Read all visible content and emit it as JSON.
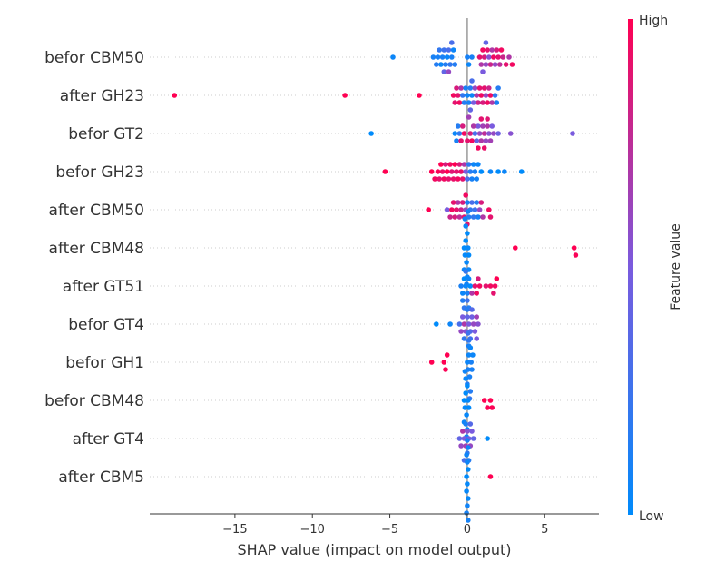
{
  "chart_data": {
    "type": "scatter",
    "subtype": "shap-beeswarm",
    "title": "",
    "xlabel": "SHAP value (impact on model output)",
    "ylabel": "",
    "xlim": [
      -20.5,
      8.5
    ],
    "xticks": [
      -15,
      -10,
      -5,
      0,
      5
    ],
    "xtick_labels": [
      "−15",
      "−10",
      "−5",
      "0",
      "5"
    ],
    "grid": "horizontal dotted row guides",
    "colorbar": {
      "label": "Feature value",
      "high_label": "High",
      "low_label": "Low",
      "low_color": "#008bfb",
      "high_color": "#ff0052"
    },
    "features": [
      {
        "name": "befor CBM50",
        "points": [
          [
            -4.8,
            0.05
          ],
          [
            -2.2,
            0.1
          ],
          [
            -2.0,
            0.15
          ],
          [
            -1.9,
            0.1
          ],
          [
            -1.8,
            0.2
          ],
          [
            -1.7,
            0.05
          ],
          [
            -1.6,
            0.1
          ],
          [
            -1.5,
            0.25
          ],
          [
            -1.4,
            0.15
          ],
          [
            -1.3,
            0.05
          ],
          [
            -1.2,
            0.3
          ],
          [
            -1.1,
            0.2
          ],
          [
            -1.0,
            0.1
          ],
          [
            -0.9,
            0.05
          ],
          [
            -0.8,
            0.15
          ],
          [
            -1.5,
            0.4
          ],
          [
            -1.2,
            0.6
          ],
          [
            -1.0,
            0.3
          ],
          [
            0.0,
            0.1
          ],
          [
            0.1,
            0.05
          ],
          [
            0.3,
            0.1
          ],
          [
            0.8,
            0.9
          ],
          [
            0.9,
            0.7
          ],
          [
            1.0,
            0.95
          ],
          [
            1.0,
            0.5
          ],
          [
            1.1,
            0.85
          ],
          [
            1.2,
            0.6
          ],
          [
            1.3,
            0.9
          ],
          [
            1.4,
            0.55
          ],
          [
            1.5,
            0.8
          ],
          [
            1.6,
            0.7
          ],
          [
            1.7,
            0.95
          ],
          [
            1.8,
            0.6
          ],
          [
            1.9,
            0.85
          ],
          [
            2.0,
            0.9
          ],
          [
            2.1,
            0.75
          ],
          [
            2.2,
            0.95
          ],
          [
            2.3,
            0.8
          ],
          [
            2.5,
            0.9
          ],
          [
            2.7,
            0.7
          ],
          [
            2.9,
            0.95
          ],
          [
            1.2,
            0.4
          ]
        ]
      },
      {
        "name": "after GH23",
        "points": [
          [
            -18.9,
            1.0
          ],
          [
            -7.9,
            1.0
          ],
          [
            -3.1,
            1.0
          ],
          [
            -0.9,
            0.95
          ],
          [
            -0.8,
            0.9
          ],
          [
            -0.7,
            0.85
          ],
          [
            -0.6,
            0.9
          ],
          [
            -0.5,
            0.95
          ],
          [
            -0.4,
            0.7
          ],
          [
            -0.3,
            0.2
          ],
          [
            -0.2,
            0.15
          ],
          [
            -0.1,
            0.1
          ],
          [
            0.0,
            0.05
          ],
          [
            0.1,
            0.1
          ],
          [
            0.2,
            0.15
          ],
          [
            0.3,
            0.05
          ],
          [
            0.4,
            0.5
          ],
          [
            0.5,
            0.6
          ],
          [
            0.6,
            0.7
          ],
          [
            0.7,
            0.8
          ],
          [
            0.8,
            0.9
          ],
          [
            0.9,
            0.95
          ],
          [
            1.0,
            0.85
          ],
          [
            1.1,
            0.9
          ],
          [
            1.2,
            0.6
          ],
          [
            1.3,
            0.95
          ],
          [
            1.4,
            0.8
          ],
          [
            1.5,
            0.95
          ],
          [
            1.6,
            0.7
          ],
          [
            1.8,
            0.2
          ],
          [
            1.9,
            0.1
          ],
          [
            2.0,
            0.15
          ],
          [
            0.2,
            0.4
          ],
          [
            0.3,
            0.3
          ],
          [
            0.1,
            0.65
          ]
        ]
      },
      {
        "name": "befor GT2",
        "points": [
          [
            -6.2,
            0.0
          ],
          [
            -0.8,
            0.05
          ],
          [
            -0.7,
            0.1
          ],
          [
            -0.6,
            0.15
          ],
          [
            -0.5,
            0.2
          ],
          [
            -0.4,
            0.9
          ],
          [
            -0.3,
            0.85
          ],
          [
            -0.2,
            0.95
          ],
          [
            0.0,
            0.9
          ],
          [
            0.2,
            0.85
          ],
          [
            0.3,
            0.95
          ],
          [
            0.4,
            0.7
          ],
          [
            0.5,
            0.3
          ],
          [
            0.6,
            0.4
          ],
          [
            0.7,
            0.5
          ],
          [
            0.8,
            0.6
          ],
          [
            0.9,
            0.7
          ],
          [
            1.0,
            0.65
          ],
          [
            1.1,
            0.75
          ],
          [
            1.2,
            0.6
          ],
          [
            1.3,
            0.7
          ],
          [
            1.4,
            0.55
          ],
          [
            1.5,
            0.65
          ],
          [
            1.6,
            0.5
          ],
          [
            1.7,
            0.6
          ],
          [
            2.0,
            0.45
          ],
          [
            2.8,
            0.55
          ],
          [
            6.8,
            0.5
          ],
          [
            0.7,
            0.95
          ],
          [
            0.9,
            0.9
          ],
          [
            1.1,
            0.92
          ],
          [
            1.3,
            0.88
          ]
        ]
      },
      {
        "name": "befor GH23",
        "points": [
          [
            -5.3,
            1.0
          ],
          [
            -2.3,
            1.0
          ],
          [
            -2.1,
            0.95
          ],
          [
            -1.9,
            0.98
          ],
          [
            -1.8,
            0.9
          ],
          [
            -1.7,
            1.0
          ],
          [
            -1.6,
            0.92
          ],
          [
            -1.5,
            0.95
          ],
          [
            -1.4,
            0.85
          ],
          [
            -1.3,
            1.0
          ],
          [
            -1.2,
            0.9
          ],
          [
            -1.1,
            0.95
          ],
          [
            -1.0,
            0.88
          ],
          [
            -0.9,
            0.92
          ],
          [
            -0.8,
            1.0
          ],
          [
            -0.7,
            0.9
          ],
          [
            -0.6,
            0.95
          ],
          [
            -0.5,
            0.85
          ],
          [
            -0.4,
            0.92
          ],
          [
            -0.3,
            0.9
          ],
          [
            -0.2,
            0.7
          ],
          [
            -0.1,
            0.5
          ],
          [
            0.0,
            0.3
          ],
          [
            0.1,
            0.2
          ],
          [
            0.2,
            0.15
          ],
          [
            0.3,
            0.1
          ],
          [
            0.4,
            0.05
          ],
          [
            0.5,
            0.1
          ],
          [
            0.6,
            0.08
          ],
          [
            0.7,
            0.05
          ],
          [
            0.9,
            0.0
          ],
          [
            1.5,
            0.05
          ],
          [
            2.0,
            0.0
          ],
          [
            2.4,
            0.05
          ],
          [
            3.5,
            0.0
          ]
        ]
      },
      {
        "name": "after CBM50",
        "points": [
          [
            -2.5,
            1.0
          ],
          [
            -1.3,
            0.5
          ],
          [
            -1.1,
            0.8
          ],
          [
            -1.0,
            0.95
          ],
          [
            -0.9,
            0.9
          ],
          [
            -0.8,
            0.85
          ],
          [
            -0.7,
            0.9
          ],
          [
            -0.6,
            0.7
          ],
          [
            -0.5,
            0.75
          ],
          [
            -0.4,
            0.8
          ],
          [
            -0.3,
            0.85
          ],
          [
            -0.2,
            0.9
          ],
          [
            -0.1,
            0.6
          ],
          [
            0.0,
            0.1
          ],
          [
            0.1,
            0.15
          ],
          [
            0.2,
            0.2
          ],
          [
            0.3,
            0.3
          ],
          [
            0.4,
            0.2
          ],
          [
            0.5,
            0.25
          ],
          [
            0.6,
            0.15
          ],
          [
            0.7,
            0.1
          ],
          [
            0.8,
            0.6
          ],
          [
            0.9,
            0.85
          ],
          [
            1.0,
            0.7
          ],
          [
            1.4,
            0.95
          ],
          [
            1.5,
            0.9
          ],
          [
            0.0,
            0.9
          ],
          [
            -0.1,
            0.95
          ]
        ]
      },
      {
        "name": "after CBM48",
        "points": [
          [
            -0.2,
            0.0
          ],
          [
            -0.15,
            0.02
          ],
          [
            -0.1,
            0.0
          ],
          [
            -0.05,
            0.03
          ],
          [
            0.0,
            0.0
          ],
          [
            0.05,
            0.02
          ],
          [
            0.1,
            0.01
          ],
          [
            -0.2,
            0.05
          ],
          [
            -0.1,
            0.04
          ],
          [
            0.0,
            0.05
          ],
          [
            0.1,
            0.04
          ],
          [
            -0.15,
            0.06
          ],
          [
            -0.05,
            0.07
          ],
          [
            0.05,
            0.06
          ],
          [
            3.1,
            1.0
          ],
          [
            6.9,
            1.0
          ],
          [
            7.0,
            0.98
          ]
        ]
      },
      {
        "name": "after GT51",
        "points": [
          [
            -0.4,
            0.1
          ],
          [
            -0.3,
            0.05
          ],
          [
            -0.2,
            0.0
          ],
          [
            -0.1,
            0.05
          ],
          [
            0.0,
            0.1
          ],
          [
            0.1,
            0.05
          ],
          [
            0.2,
            0.0
          ],
          [
            -0.3,
            0.15
          ],
          [
            -0.1,
            0.2
          ],
          [
            0.0,
            0.25
          ],
          [
            0.1,
            0.15
          ],
          [
            -0.2,
            0.2
          ],
          [
            0.3,
            0.7
          ],
          [
            0.5,
            0.9
          ],
          [
            0.6,
            0.95
          ],
          [
            0.7,
            0.85
          ],
          [
            0.8,
            0.95
          ],
          [
            1.2,
            0.9
          ],
          [
            1.5,
            0.95
          ],
          [
            1.7,
            0.9
          ],
          [
            1.8,
            0.95
          ],
          [
            1.9,
            1.0
          ]
        ]
      },
      {
        "name": "befor GT4",
        "points": [
          [
            -2.0,
            0.0
          ],
          [
            -1.1,
            0.05
          ],
          [
            -0.5,
            0.3
          ],
          [
            -0.4,
            0.6
          ],
          [
            -0.3,
            0.5
          ],
          [
            -0.2,
            0.7
          ],
          [
            -0.1,
            0.55
          ],
          [
            0.0,
            0.4
          ],
          [
            0.1,
            0.5
          ],
          [
            0.2,
            0.35
          ],
          [
            0.3,
            0.45
          ],
          [
            0.4,
            0.6
          ],
          [
            0.5,
            0.5
          ],
          [
            0.6,
            0.65
          ],
          [
            0.7,
            0.55
          ],
          [
            -0.2,
            0.2
          ],
          [
            0.0,
            0.15
          ],
          [
            0.2,
            0.25
          ],
          [
            0.1,
            0.1
          ],
          [
            0.6,
            0.5
          ],
          [
            0.3,
            0.35
          ]
        ]
      },
      {
        "name": "befor GH1",
        "points": [
          [
            -2.3,
            1.0
          ],
          [
            -1.5,
            1.0
          ],
          [
            -1.4,
            0.98
          ],
          [
            -1.3,
            1.0
          ],
          [
            0.0,
            0.05
          ],
          [
            0.05,
            0.1
          ],
          [
            0.1,
            0.05
          ],
          [
            0.15,
            0.1
          ],
          [
            0.2,
            0.05
          ],
          [
            0.25,
            0.1
          ],
          [
            0.0,
            0.15
          ],
          [
            0.1,
            0.2
          ],
          [
            0.2,
            0.15
          ],
          [
            0.05,
            0.25
          ],
          [
            0.15,
            0.2
          ],
          [
            0.3,
            0.1
          ],
          [
            0.35,
            0.05
          ]
        ]
      },
      {
        "name": "befor CBM48",
        "points": [
          [
            -0.2,
            0.0
          ],
          [
            -0.15,
            0.02
          ],
          [
            -0.1,
            0.0
          ],
          [
            -0.05,
            0.03
          ],
          [
            0.0,
            0.0
          ],
          [
            0.05,
            0.02
          ],
          [
            0.1,
            0.01
          ],
          [
            -0.2,
            0.05
          ],
          [
            -0.1,
            0.04
          ],
          [
            0.0,
            0.05
          ],
          [
            -0.15,
            0.06
          ],
          [
            -0.05,
            0.07
          ],
          [
            1.1,
            1.0
          ],
          [
            1.3,
            0.98
          ],
          [
            1.5,
            1.0
          ],
          [
            1.6,
            0.99
          ]
        ]
      },
      {
        "name": "after GT4",
        "points": [
          [
            -0.5,
            0.4
          ],
          [
            -0.4,
            0.6
          ],
          [
            -0.3,
            0.7
          ],
          [
            -0.2,
            0.5
          ],
          [
            -0.1,
            0.65
          ],
          [
            0.0,
            0.55
          ],
          [
            0.1,
            0.45
          ],
          [
            0.2,
            0.6
          ],
          [
            0.3,
            0.5
          ],
          [
            0.4,
            0.4
          ],
          [
            0.0,
            0.2
          ],
          [
            -0.1,
            0.1
          ],
          [
            0.1,
            0.15
          ],
          [
            1.3,
            0.0
          ],
          [
            -0.2,
            0.3
          ],
          [
            0.2,
            0.35
          ]
        ]
      },
      {
        "name": "after CBM5",
        "points": [
          [
            -0.05,
            0.0
          ],
          [
            0.0,
            0.02
          ],
          [
            0.05,
            0.0
          ],
          [
            -0.05,
            0.03
          ],
          [
            0.0,
            0.05
          ],
          [
            0.05,
            0.03
          ],
          [
            -0.05,
            0.06
          ],
          [
            0.0,
            0.07
          ],
          [
            0.05,
            0.06
          ],
          [
            -0.05,
            0.09
          ],
          [
            0.0,
            0.1
          ],
          [
            0.05,
            0.09
          ],
          [
            1.5,
            1.0
          ]
        ]
      }
    ]
  }
}
